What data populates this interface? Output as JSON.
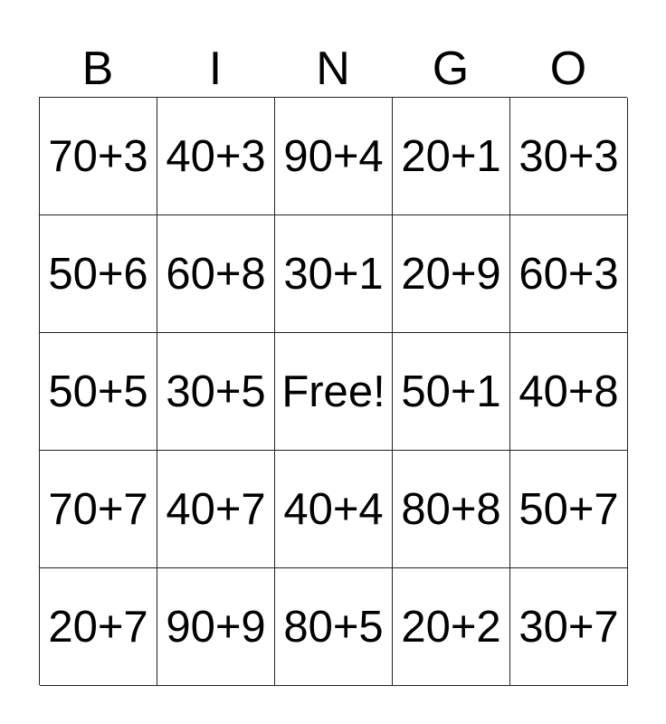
{
  "header": [
    "B",
    "I",
    "N",
    "G",
    "O"
  ],
  "rows": [
    [
      "70+3",
      "40+3",
      "90+4",
      "20+1",
      "30+3"
    ],
    [
      "50+6",
      "60+8",
      "30+1",
      "20+9",
      "60+3"
    ],
    [
      "50+5",
      "30+5",
      "Free!",
      "50+1",
      "40+8"
    ],
    [
      "70+7",
      "40+7",
      "40+4",
      "80+8",
      "50+7"
    ],
    [
      "20+7",
      "90+9",
      "80+5",
      "20+2",
      "30+7"
    ]
  ]
}
